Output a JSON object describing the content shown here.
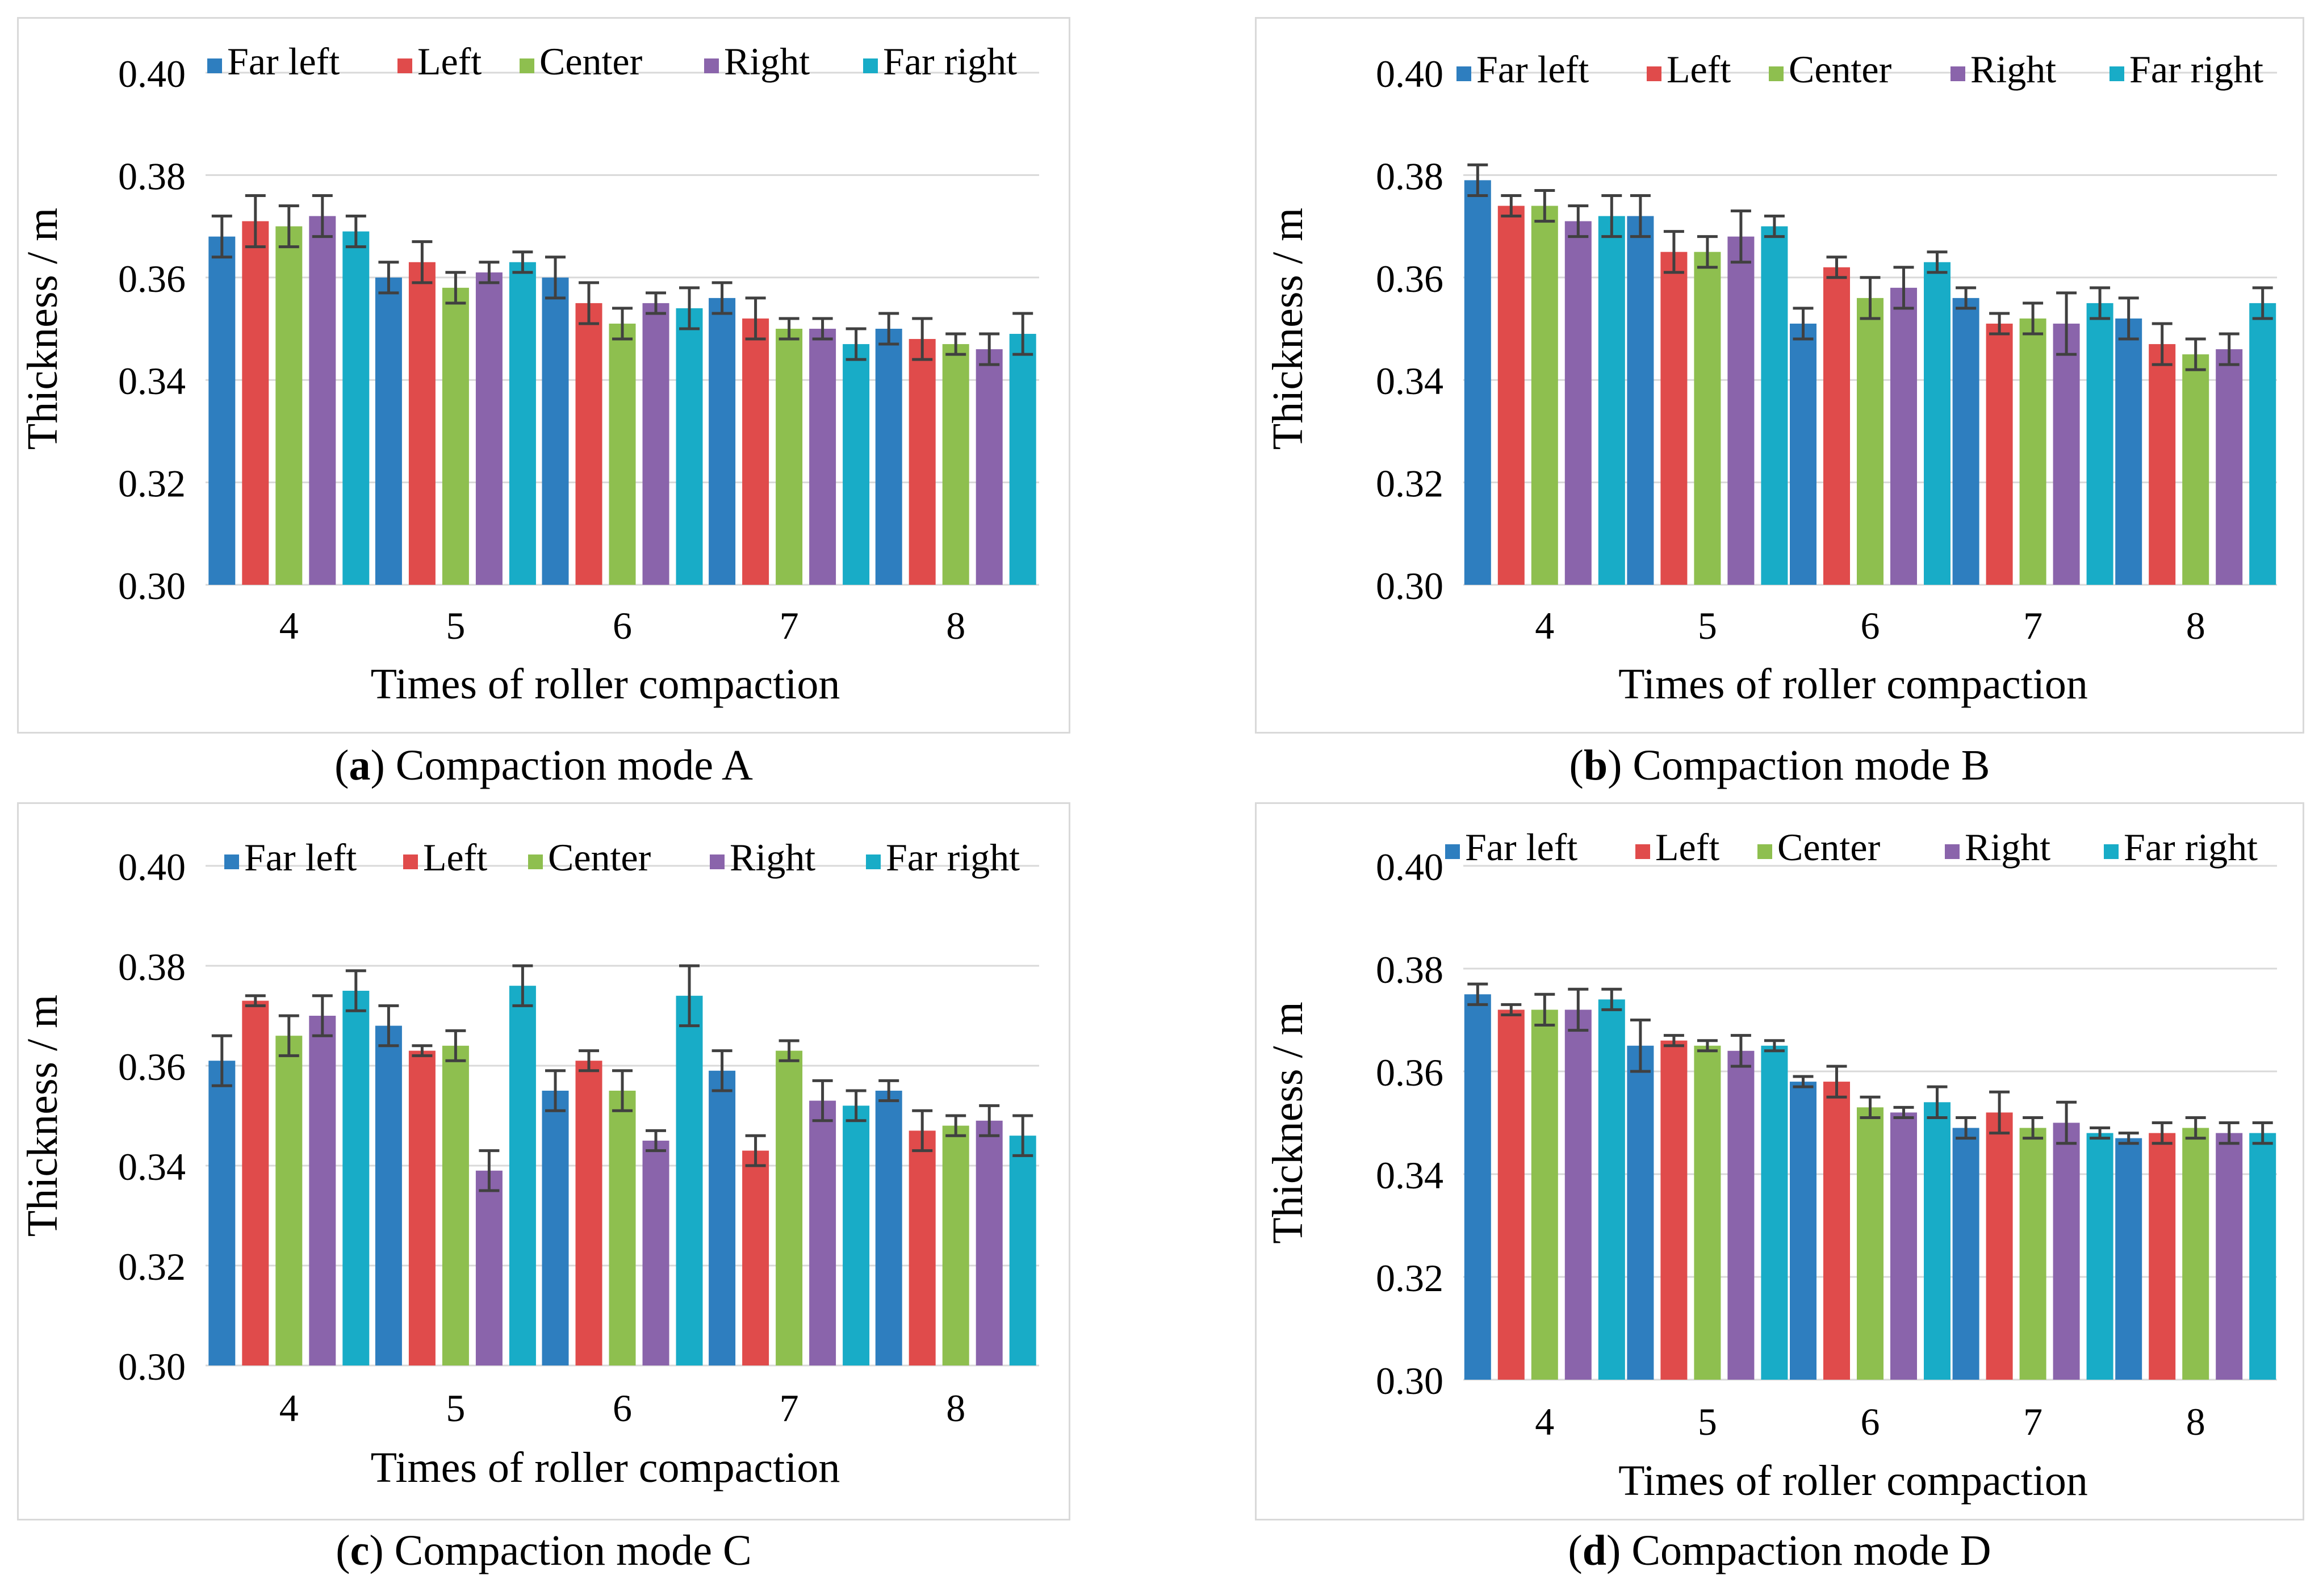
{
  "legend": {
    "series": [
      "Far left",
      "Left",
      "Center",
      "Right",
      "Far right"
    ],
    "colors": [
      "#2e7ebf",
      "#e04b4b",
      "#8ebf4f",
      "#8a64ab",
      "#18acc7"
    ]
  },
  "error_bar_color": "#404040",
  "grid_color": "#d9d9d9",
  "chart_data": [
    {
      "type": "bar",
      "panel": "a",
      "caption_letter": "a",
      "caption_text": "Compaction mode A",
      "xlabel": "Times of roller compaction",
      "ylabel": "Thickness / m",
      "categories": [
        "4",
        "5",
        "6",
        "7",
        "8"
      ],
      "ylim": [
        0.3,
        0.4
      ],
      "yticks": [
        "0.30",
        "0.32",
        "0.34",
        "0.36",
        "0.38",
        "0.40"
      ],
      "series": [
        {
          "name": "Far left",
          "values": [
            0.368,
            0.36,
            0.36,
            0.356,
            0.35
          ],
          "errors": [
            0.004,
            0.003,
            0.004,
            0.003,
            0.003
          ]
        },
        {
          "name": "Left",
          "values": [
            0.371,
            0.363,
            0.355,
            0.352,
            0.348
          ],
          "errors": [
            0.005,
            0.004,
            0.004,
            0.004,
            0.004
          ]
        },
        {
          "name": "Center",
          "values": [
            0.37,
            0.358,
            0.351,
            0.35,
            0.347
          ],
          "errors": [
            0.004,
            0.003,
            0.003,
            0.002,
            0.002
          ]
        },
        {
          "name": "Right",
          "values": [
            0.372,
            0.361,
            0.355,
            0.35,
            0.346
          ],
          "errors": [
            0.004,
            0.002,
            0.002,
            0.002,
            0.003
          ]
        },
        {
          "name": "Far right",
          "values": [
            0.369,
            0.363,
            0.354,
            0.347,
            0.349
          ],
          "errors": [
            0.003,
            0.002,
            0.004,
            0.003,
            0.004
          ]
        }
      ]
    },
    {
      "type": "bar",
      "panel": "b",
      "caption_letter": "b",
      "caption_text": "Compaction mode B",
      "xlabel": "Times of roller compaction",
      "ylabel": "Thickness / m",
      "categories": [
        "4",
        "5",
        "6",
        "7",
        "8"
      ],
      "ylim": [
        0.3,
        0.4
      ],
      "yticks": [
        "0.30",
        "0.32",
        "0.34",
        "0.36",
        "0.38",
        "0.40"
      ],
      "series": [
        {
          "name": "Far left",
          "values": [
            0.379,
            0.372,
            0.351,
            0.356,
            0.352
          ],
          "errors": [
            0.003,
            0.004,
            0.003,
            0.002,
            0.004
          ]
        },
        {
          "name": "Left",
          "values": [
            0.374,
            0.365,
            0.362,
            0.351,
            0.347
          ],
          "errors": [
            0.002,
            0.004,
            0.002,
            0.002,
            0.004
          ]
        },
        {
          "name": "Center",
          "values": [
            0.374,
            0.365,
            0.356,
            0.352,
            0.345
          ],
          "errors": [
            0.003,
            0.003,
            0.004,
            0.003,
            0.003
          ]
        },
        {
          "name": "Right",
          "values": [
            0.371,
            0.368,
            0.358,
            0.351,
            0.346
          ],
          "errors": [
            0.003,
            0.005,
            0.004,
            0.006,
            0.003
          ]
        },
        {
          "name": "Far right",
          "values": [
            0.372,
            0.37,
            0.363,
            0.355,
            0.355
          ],
          "errors": [
            0.004,
            0.002,
            0.002,
            0.003,
            0.003
          ]
        }
      ]
    },
    {
      "type": "bar",
      "panel": "c",
      "caption_letter": "c",
      "caption_text": "Compaction mode C",
      "xlabel": "Times of roller compaction",
      "ylabel": "Thickness / m",
      "categories": [
        "4",
        "5",
        "6",
        "7",
        "8"
      ],
      "ylim": [
        0.3,
        0.4
      ],
      "yticks": [
        "0.30",
        "0.32",
        "0.34",
        "0.36",
        "0.38",
        "0.40"
      ],
      "series": [
        {
          "name": "Far left",
          "values": [
            0.361,
            0.368,
            0.355,
            0.359,
            0.355
          ],
          "errors": [
            0.005,
            0.004,
            0.004,
            0.004,
            0.002
          ]
        },
        {
          "name": "Left",
          "values": [
            0.373,
            0.363,
            0.361,
            0.343,
            0.347
          ],
          "errors": [
            0.001,
            0.001,
            0.002,
            0.003,
            0.004
          ]
        },
        {
          "name": "Center",
          "values": [
            0.366,
            0.364,
            0.355,
            0.363,
            0.348
          ],
          "errors": [
            0.004,
            0.003,
            0.004,
            0.002,
            0.002
          ]
        },
        {
          "name": "Right",
          "values": [
            0.37,
            0.339,
            0.345,
            0.353,
            0.349
          ],
          "errors": [
            0.004,
            0.004,
            0.002,
            0.004,
            0.003
          ]
        },
        {
          "name": "Far right",
          "values": [
            0.375,
            0.376,
            0.374,
            0.352,
            0.346
          ],
          "errors": [
            0.004,
            0.004,
            0.006,
            0.003,
            0.004
          ]
        }
      ]
    },
    {
      "type": "bar",
      "panel": "d",
      "caption_letter": "d",
      "caption_text": "Compaction mode D",
      "xlabel": "Times of roller compaction",
      "ylabel": "Thickness / m",
      "categories": [
        "4",
        "5",
        "6",
        "7",
        "8"
      ],
      "ylim": [
        0.3,
        0.4
      ],
      "yticks": [
        "0.30",
        "0.32",
        "0.34",
        "0.36",
        "0.38",
        "0.40"
      ],
      "series": [
        {
          "name": "Far left",
          "values": [
            0.375,
            0.365,
            0.358,
            0.349,
            0.347
          ],
          "errors": [
            0.002,
            0.005,
            0.001,
            0.002,
            0.001
          ]
        },
        {
          "name": "Left",
          "values": [
            0.372,
            0.366,
            0.358,
            0.352,
            0.348
          ],
          "errors": [
            0.001,
            0.001,
            0.003,
            0.004,
            0.002
          ]
        },
        {
          "name": "Center",
          "values": [
            0.372,
            0.365,
            0.353,
            0.349,
            0.349
          ],
          "errors": [
            0.003,
            0.001,
            0.002,
            0.002,
            0.002
          ]
        },
        {
          "name": "Right",
          "values": [
            0.372,
            0.364,
            0.352,
            0.35,
            0.348
          ],
          "errors": [
            0.004,
            0.003,
            0.001,
            0.004,
            0.002
          ]
        },
        {
          "name": "Far right",
          "values": [
            0.374,
            0.365,
            0.354,
            0.348,
            0.348
          ],
          "errors": [
            0.002,
            0.001,
            0.003,
            0.001,
            0.002
          ]
        }
      ]
    }
  ]
}
